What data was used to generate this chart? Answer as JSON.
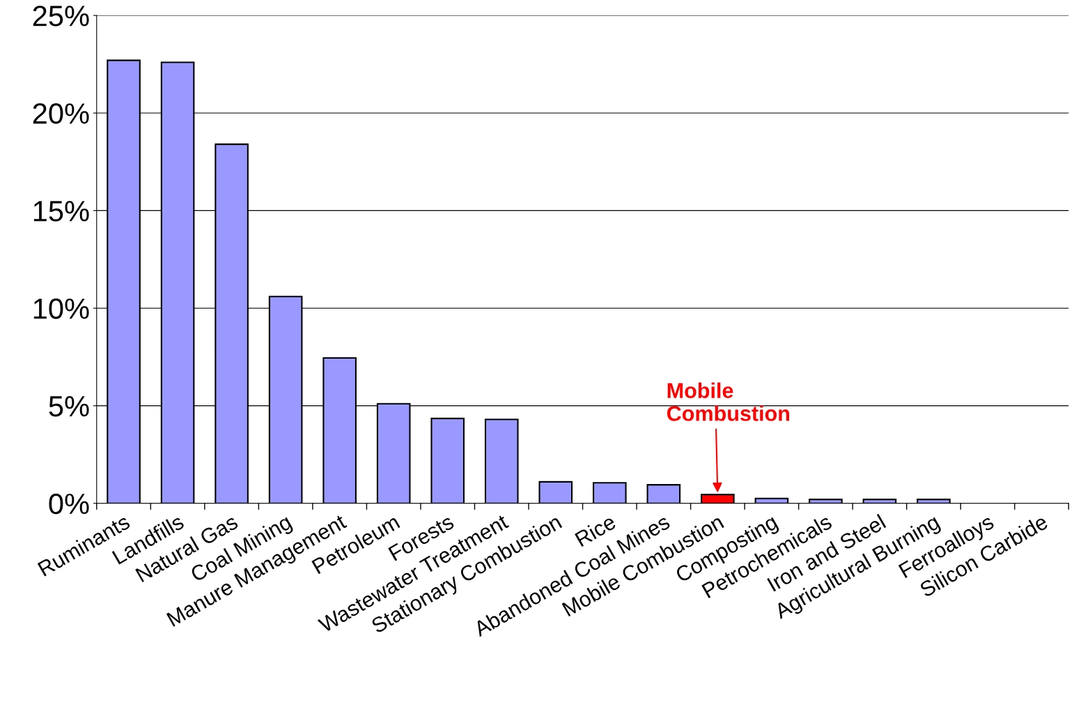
{
  "chart_data": {
    "type": "bar",
    "categories": [
      "Ruminants",
      "Landfills",
      "Natural Gas",
      "Coal Mining",
      "Manure Management",
      "Petroleum",
      "Forests",
      "Wastewater Treatment",
      "Stationary Combustion",
      "Rice",
      "Abandoned Coal Mines",
      "Mobile Combustion",
      "Composting",
      "Petrochemicals",
      "Iron and Steel",
      "Agricultural Burning",
      "Ferroalloys",
      "Silicon Carbide"
    ],
    "values": [
      22.7,
      22.6,
      18.4,
      10.6,
      7.45,
      5.1,
      4.35,
      4.3,
      1.1,
      1.05,
      0.95,
      0.45,
      0.25,
      0.2,
      0.2,
      0.2,
      null,
      null
    ],
    "colors": [
      "#9999ff",
      "#9999ff",
      "#9999ff",
      "#9999ff",
      "#9999ff",
      "#9999ff",
      "#9999ff",
      "#9999ff",
      "#9999ff",
      "#9999ff",
      "#9999ff",
      "#ff0000",
      "#9999ff",
      "#9999ff",
      "#9999ff",
      "#9999ff",
      "#9999ff",
      "#9999ff"
    ],
    "ylim": [
      0,
      25
    ],
    "yticks": [
      {
        "value": 0,
        "label": "0%"
      },
      {
        "value": 5,
        "label": "5%"
      },
      {
        "value": 10,
        "label": "10%"
      },
      {
        "value": 15,
        "label": "15%"
      },
      {
        "value": 20,
        "label": "20%"
      },
      {
        "value": 25,
        "label": "25%"
      }
    ],
    "grid": "y",
    "annotations": [
      {
        "text": "Mobile\nCombustion",
        "x": "Mobile Combustion",
        "y": 0.45
      }
    ]
  }
}
